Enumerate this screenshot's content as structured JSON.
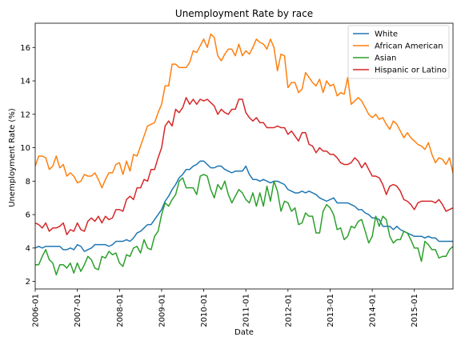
{
  "chart_data": {
    "type": "line",
    "title": "Unemployment Rate by race",
    "xlabel": "Date",
    "ylabel": "Unemployment Rate (%)",
    "x_start": "2006-01",
    "x_end": "2015-12",
    "xlim": [
      "2006-01",
      "2015-12"
    ],
    "ylim": [
      1.55,
      17.45
    ],
    "x_ticks": [
      "2006-01",
      "2007-01",
      "2008-01",
      "2009-01",
      "2010-01",
      "2011-01",
      "2012-01",
      "2013-01",
      "2014-01",
      "2015-01"
    ],
    "y_ticks": [
      2,
      4,
      6,
      8,
      10,
      12,
      14,
      16
    ],
    "grid": false,
    "legend_position": "top-right",
    "series": [
      {
        "name": "White",
        "color": "#1f77b4",
        "values": [
          4.0,
          4.1,
          4.0,
          4.1,
          4.1,
          4.1,
          4.1,
          4.1,
          3.9,
          3.9,
          4.0,
          3.9,
          4.2,
          4.1,
          3.8,
          3.9,
          4.0,
          4.2,
          4.2,
          4.2,
          4.2,
          4.1,
          4.2,
          4.4,
          4.4,
          4.4,
          4.5,
          4.4,
          4.6,
          4.9,
          5.0,
          5.2,
          5.4,
          5.4,
          5.7,
          6.0,
          6.3,
          6.8,
          7.1,
          7.5,
          7.8,
          8.2,
          8.4,
          8.7,
          8.7,
          8.9,
          9.0,
          9.2,
          9.2,
          9.0,
          8.8,
          8.8,
          8.9,
          8.9,
          8.7,
          8.6,
          8.5,
          8.6,
          8.6,
          8.6,
          8.9,
          8.4,
          8.1,
          8.1,
          8.0,
          8.1,
          8.0,
          7.9,
          8.0,
          8.0,
          7.9,
          7.8,
          7.5,
          7.4,
          7.3,
          7.3,
          7.4,
          7.3,
          7.4,
          7.3,
          7.2,
          7.0,
          6.9,
          6.8,
          6.9,
          7.0,
          6.7,
          6.7,
          6.7,
          6.7,
          6.6,
          6.5,
          6.3,
          6.3,
          6.1,
          6.0,
          5.8,
          5.8,
          5.7,
          5.3,
          5.3,
          5.3,
          5.1,
          5.3,
          5.1,
          5.0,
          4.9,
          4.8,
          4.7,
          4.7,
          4.7,
          4.6,
          4.7,
          4.6,
          4.6,
          4.4,
          4.4,
          4.4,
          4.4,
          4.4
        ]
      },
      {
        "name": "African American",
        "color": "#ff7f0e",
        "values": [
          8.9,
          9.5,
          9.5,
          9.4,
          8.7,
          8.9,
          9.5,
          8.8,
          9.0,
          8.3,
          8.5,
          8.3,
          7.9,
          8.0,
          8.4,
          8.3,
          8.3,
          8.5,
          8.1,
          7.6,
          8.1,
          8.5,
          8.5,
          9.0,
          9.1,
          8.4,
          9.2,
          8.6,
          9.6,
          9.5,
          10.1,
          10.7,
          11.3,
          11.4,
          11.5,
          12.1,
          12.6,
          13.7,
          13.7,
          15.0,
          15.0,
          14.8,
          14.8,
          14.8,
          15.1,
          15.8,
          15.7,
          16.1,
          16.5,
          16.0,
          16.8,
          16.6,
          15.5,
          15.2,
          15.6,
          15.9,
          15.9,
          15.5,
          16.2,
          15.5,
          15.8,
          15.6,
          16.0,
          16.5,
          16.3,
          16.2,
          15.9,
          16.5,
          16.0,
          14.6,
          15.6,
          15.5,
          13.6,
          13.9,
          13.9,
          13.3,
          13.5,
          14.5,
          14.2,
          13.9,
          13.7,
          14.1,
          13.3,
          14.0,
          13.7,
          13.8,
          13.1,
          13.3,
          13.2,
          14.2,
          12.6,
          12.8,
          13.0,
          12.8,
          12.4,
          12.0,
          11.8,
          12.0,
          11.7,
          11.8,
          11.4,
          11.1,
          11.6,
          11.4,
          11.0,
          10.6,
          10.9,
          10.6,
          10.4,
          10.2,
          10.1,
          9.9,
          10.3,
          9.6,
          9.1,
          9.4,
          9.3,
          9.0,
          9.4,
          8.5
        ]
      },
      {
        "name": "Asian",
        "color": "#2ca02c",
        "values": [
          3.0,
          3.0,
          3.5,
          3.9,
          3.3,
          3.1,
          2.4,
          3.0,
          3.0,
          2.8,
          3.1,
          2.5,
          3.1,
          2.6,
          3.0,
          3.5,
          3.3,
          2.8,
          2.7,
          3.5,
          3.4,
          3.8,
          3.6,
          3.7,
          3.1,
          2.9,
          3.6,
          3.5,
          4.0,
          4.1,
          3.7,
          4.5,
          4.0,
          3.9,
          4.7,
          5.0,
          6.0,
          6.7,
          6.5,
          6.9,
          7.2,
          8.0,
          8.2,
          7.6,
          7.6,
          7.6,
          7.2,
          8.3,
          8.4,
          8.3,
          7.5,
          7.0,
          7.8,
          7.5,
          8.0,
          7.2,
          6.7,
          7.1,
          7.5,
          7.3,
          6.9,
          6.7,
          7.3,
          6.5,
          7.3,
          6.5,
          7.7,
          6.8,
          8.0,
          7.4,
          6.2,
          6.8,
          6.7,
          6.2,
          6.4,
          5.4,
          5.5,
          6.1,
          5.9,
          5.9,
          4.9,
          4.9,
          6.2,
          6.6,
          6.4,
          6.0,
          5.1,
          5.2,
          4.5,
          4.7,
          5.3,
          5.2,
          5.6,
          5.7,
          5.0,
          4.3,
          4.7,
          5.9,
          5.3,
          5.9,
          5.7,
          4.7,
          4.3,
          4.5,
          4.5,
          5.0,
          4.9,
          4.5,
          4.0,
          4.0,
          3.2,
          4.4,
          4.2,
          3.9,
          3.9,
          3.4,
          3.5,
          3.5,
          3.9,
          4.1
        ]
      },
      {
        "name": "Hispanic or Latino",
        "color": "#d62728",
        "values": [
          5.5,
          5.4,
          5.2,
          5.5,
          5.0,
          5.2,
          5.2,
          5.3,
          5.5,
          4.8,
          5.1,
          5.0,
          5.5,
          5.1,
          5.0,
          5.6,
          5.8,
          5.6,
          5.9,
          5.5,
          5.9,
          5.7,
          5.8,
          6.3,
          6.3,
          6.2,
          6.9,
          7.1,
          6.9,
          7.6,
          7.6,
          8.1,
          8.0,
          8.7,
          8.7,
          9.4,
          10.0,
          11.3,
          11.6,
          11.3,
          12.3,
          12.1,
          12.4,
          13.0,
          12.6,
          12.9,
          12.6,
          12.9,
          12.8,
          12.9,
          12.7,
          12.5,
          12.0,
          12.3,
          12.1,
          12.0,
          12.3,
          12.3,
          12.9,
          12.9,
          12.1,
          11.8,
          11.6,
          11.8,
          11.5,
          11.5,
          11.2,
          11.2,
          11.2,
          11.3,
          11.2,
          11.2,
          10.8,
          11.0,
          10.7,
          10.4,
          10.9,
          10.9,
          10.2,
          10.1,
          9.7,
          10.0,
          9.8,
          9.8,
          9.6,
          9.6,
          9.4,
          9.1,
          9.0,
          9.0,
          9.1,
          9.4,
          9.2,
          8.8,
          9.1,
          8.7,
          8.3,
          8.3,
          8.2,
          7.8,
          7.2,
          7.7,
          7.8,
          7.7,
          7.4,
          6.9,
          6.8,
          6.6,
          6.3,
          6.7,
          6.8,
          6.8,
          6.8,
          6.8,
          6.7,
          6.9,
          6.6,
          6.2,
          6.3,
          6.4,
          6.2
        ]
      }
    ]
  }
}
